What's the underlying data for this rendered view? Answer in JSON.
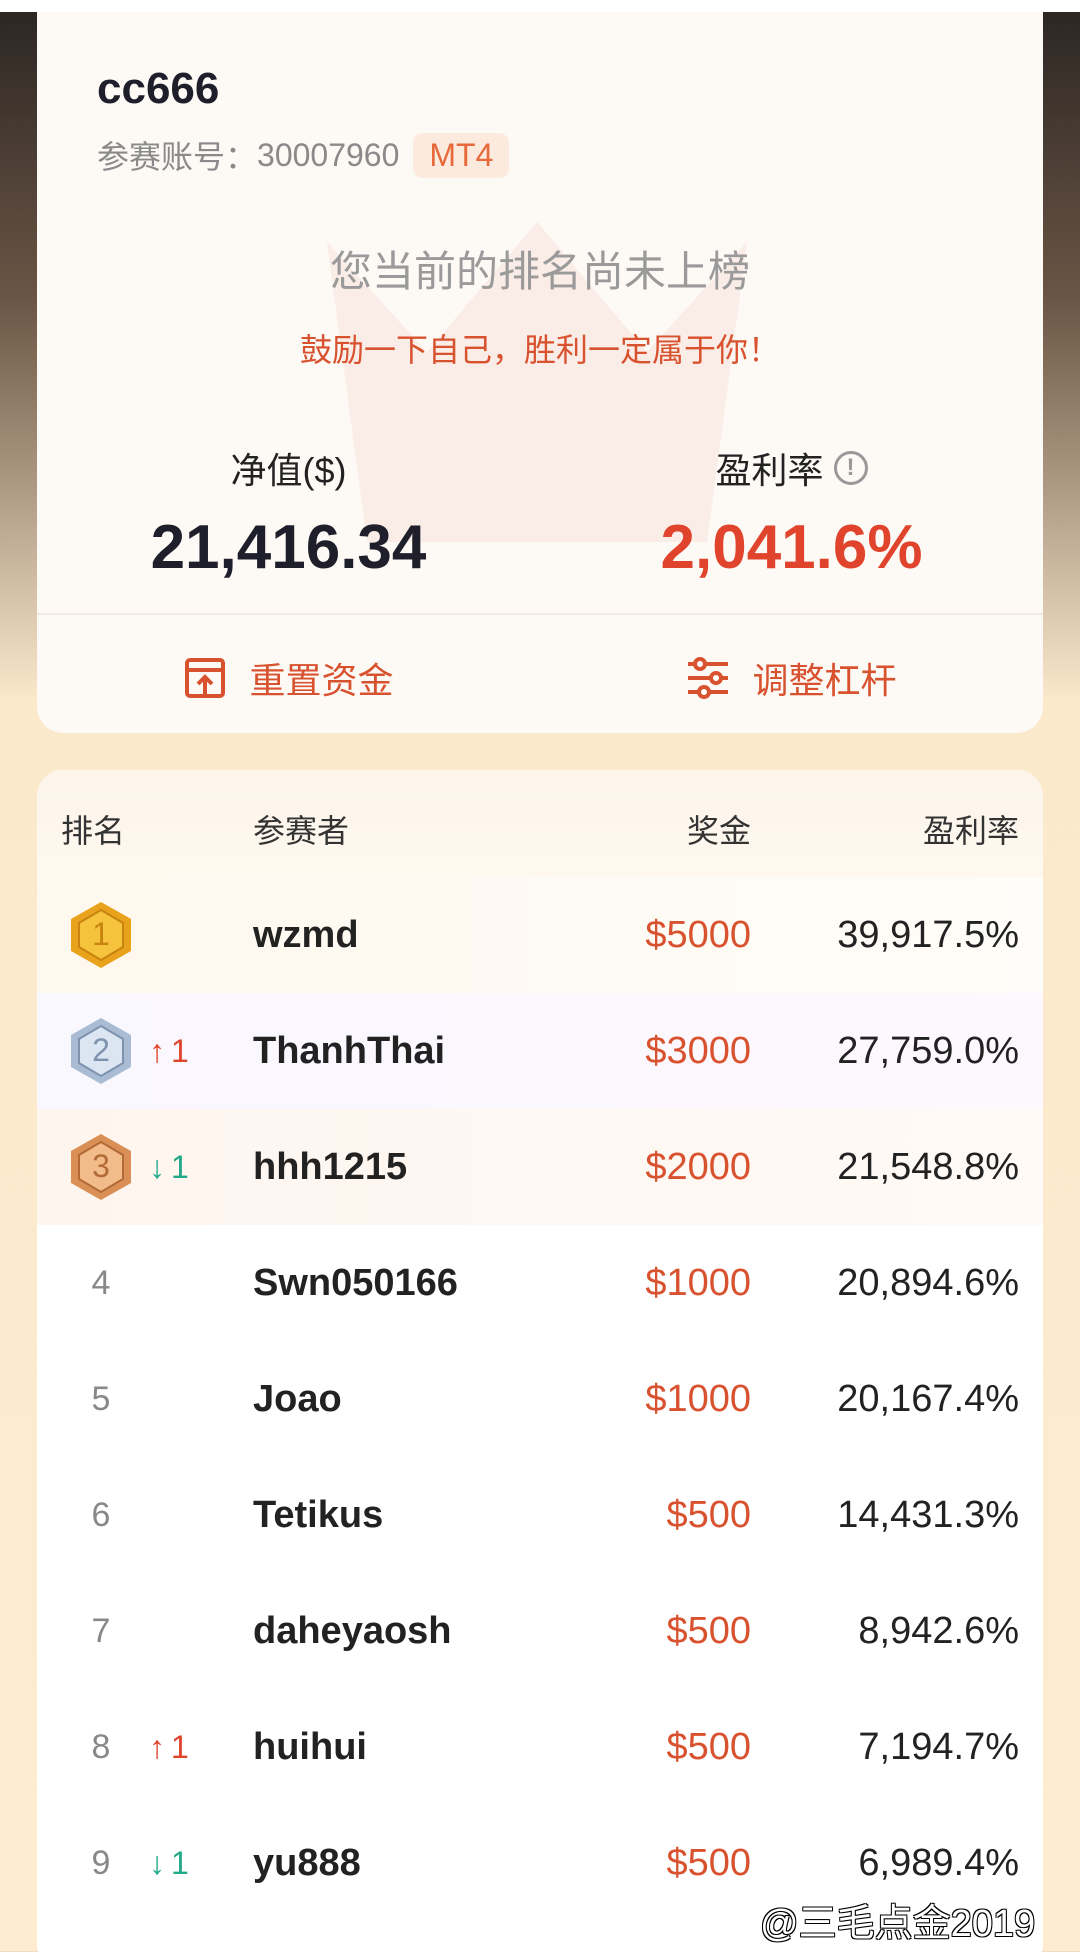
{
  "profile": {
    "username": "cc666",
    "account_label": "参赛账号：",
    "account_number": "30007960",
    "platform": "MT4",
    "rank_status": "您当前的排名尚未上榜",
    "encouragement": "鼓励一下自己，胜利一定属于你！",
    "equity_label": "净值($)",
    "equity_value": "21,416.34",
    "profit_rate_label": "盈利率",
    "profit_rate_value": "2,041.6%"
  },
  "actions": {
    "reset_funds": "重置资金",
    "adjust_leverage": "调整杠杆"
  },
  "table": {
    "headers": {
      "rank": "排名",
      "participant": "参赛者",
      "prize": "奖金",
      "profit_rate": "盈利率"
    },
    "rows": [
      {
        "rank": "1",
        "medal": "gold",
        "change": "",
        "direction": "",
        "name": "wzmd",
        "prize": "$5000",
        "rate": "39,917.5%"
      },
      {
        "rank": "2",
        "medal": "silver",
        "change": "1",
        "direction": "up",
        "name": "ThanhThai",
        "prize": "$3000",
        "rate": "27,759.0%"
      },
      {
        "rank": "3",
        "medal": "bronze",
        "change": "1",
        "direction": "down",
        "name": "hhh1215",
        "prize": "$2000",
        "rate": "21,548.8%"
      },
      {
        "rank": "4",
        "change": "",
        "direction": "",
        "name": "Swn050166",
        "prize": "$1000",
        "rate": "20,894.6%"
      },
      {
        "rank": "5",
        "change": "",
        "direction": "",
        "name": "Joao",
        "prize": "$1000",
        "rate": "20,167.4%"
      },
      {
        "rank": "6",
        "change": "",
        "direction": "",
        "name": "Tetikus",
        "prize": "$500",
        "rate": "14,431.3%"
      },
      {
        "rank": "7",
        "change": "",
        "direction": "",
        "name": "daheyaosh",
        "prize": "$500",
        "rate": "8,942.6%"
      },
      {
        "rank": "8",
        "change": "1",
        "direction": "up",
        "name": "huihui",
        "prize": "$500",
        "rate": "7,194.7%"
      },
      {
        "rank": "9",
        "change": "1",
        "direction": "down",
        "name": "yu888",
        "prize": "$500",
        "rate": "6,989.4%"
      }
    ]
  },
  "watermark": "@三毛点金2019",
  "colors": {
    "accent": "#d9522f",
    "up": "#e0442c",
    "down": "#23a98a",
    "gold": "#f5b82e",
    "silver": "#a9bcd3",
    "bronze": "#d98f56"
  }
}
